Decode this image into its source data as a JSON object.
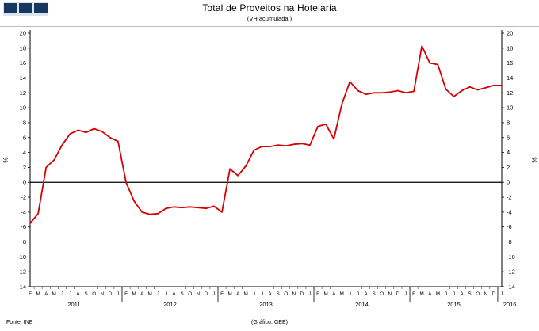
{
  "header": {
    "title": "Total de Proveitos na Hotelaria",
    "subtitle": "(VH acumulada )"
  },
  "footer": {
    "source": "Fonte: INE",
    "credit": "(Gráfico: GEE)"
  },
  "colors": {
    "line": "#d40000",
    "axis": "#000000",
    "logo": "#17375e"
  },
  "chart_data": {
    "type": "line",
    "title": "Total de Proveitos na Hotelaria",
    "subtitle": "(VH acumulada)",
    "xlabel": "",
    "ylabel": "%",
    "ylabel_right": "%",
    "ylim": [
      -14,
      20
    ],
    "ytick_step": 2,
    "grid": false,
    "legend": "none",
    "line_color": "#d40000",
    "x_labels": [
      "F",
      "M",
      "A",
      "M",
      "J",
      "J",
      "A",
      "S",
      "O",
      "N",
      "D",
      "J",
      "F",
      "M",
      "A",
      "M",
      "J",
      "J",
      "A",
      "S",
      "O",
      "N",
      "D",
      "J",
      "F",
      "M",
      "A",
      "M",
      "J",
      "J",
      "A",
      "S",
      "O",
      "N",
      "D",
      "J",
      "F",
      "M",
      "A",
      "M",
      "J",
      "J",
      "A",
      "S",
      "O",
      "N",
      "D",
      "J",
      "F",
      "M",
      "A",
      "M",
      "J",
      "J",
      "A",
      "S",
      "O",
      "N",
      "D",
      "J"
    ],
    "years": [
      "2011",
      "2012",
      "2013",
      "2014",
      "2015",
      "2016"
    ],
    "year_centers": [
      5.5,
      17.5,
      29.5,
      41.5,
      53.0,
      60.0
    ],
    "year_separators": [
      11.5,
      23.5,
      35.5,
      47.5,
      58.5
    ],
    "series": [
      {
        "name": "Total de Proveitos (VH acumulada, %)",
        "values": [
          -5.5,
          -4.2,
          2.0,
          3.0,
          5.0,
          6.5,
          7.0,
          6.7,
          7.2,
          6.8,
          6.0,
          5.5,
          0.0,
          -2.5,
          -4.0,
          -4.3,
          -4.2,
          -3.5,
          -3.3,
          -3.4,
          -3.3,
          -3.4,
          -3.5,
          -3.2,
          -4.0,
          1.8,
          0.9,
          2.2,
          4.3,
          4.8,
          4.8,
          5.0,
          4.9,
          5.1,
          5.2,
          5.0,
          7.5,
          7.8,
          5.8,
          10.5,
          13.5,
          12.3,
          11.8,
          12.0,
          12.0,
          12.1,
          12.3,
          12.0,
          12.2,
          18.3,
          16.0,
          15.8,
          12.5,
          11.5,
          12.3,
          12.8,
          12.4,
          12.7,
          13.0,
          13.0
        ]
      }
    ]
  }
}
